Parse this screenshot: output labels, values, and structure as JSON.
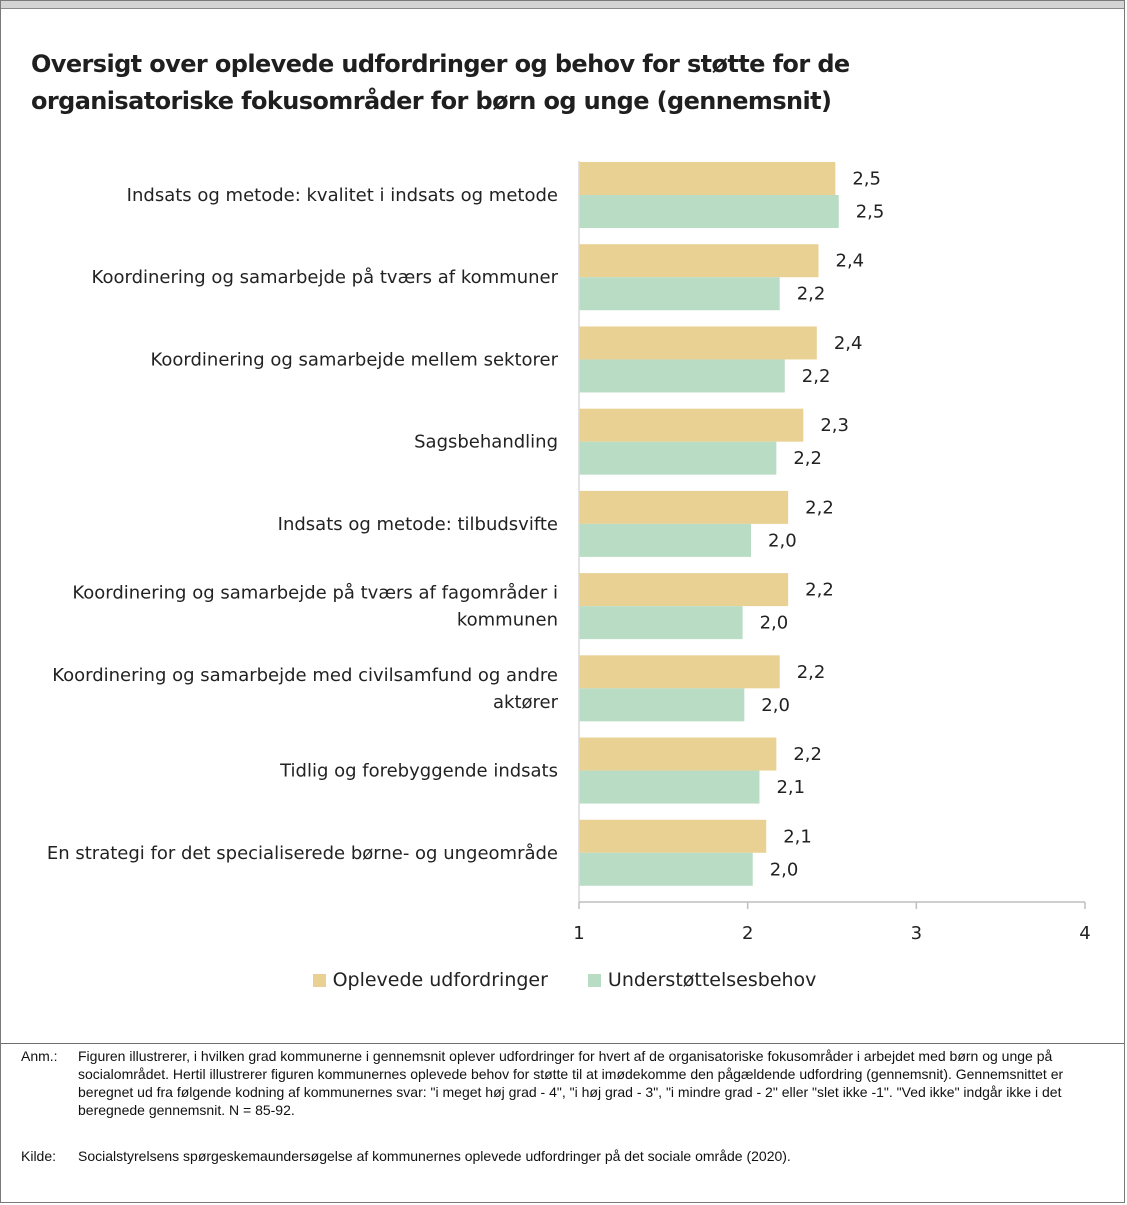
{
  "title": "Oversigt over oplevede udfordringer og behov for støtte for de organisatoriske fokusområder for børn og unge (gennemsnit)",
  "chart_data": {
    "type": "bar",
    "orientation": "horizontal",
    "title": "Oversigt over oplevede udfordringer og behov for støtte for de organisatoriske fokusområder for børn og unge (gennemsnit)",
    "categories": [
      "Indsats og metode: kvalitet i indsats og metode",
      "Koordinering og samarbejde på tværs af kommuner",
      "Koordinering og samarbejde mellem sektorer",
      "Sagsbehandling",
      "Indsats og metode: tilbudsvifte",
      "Koordinering og samarbejde på tværs af fagområder i kommunen",
      "Koordinering og samarbejde med civilsamfund og andre aktører",
      "Tidlig og forebyggende indsats",
      "En strategi for det specialiserede børne- og ungeområde"
    ],
    "category_lines": [
      [
        "Indsats og metode: kvalitet i indsats og metode"
      ],
      [
        "Koordinering og samarbejde på tværs af kommuner"
      ],
      [
        "Koordinering og samarbejde mellem sektorer"
      ],
      [
        "Sagsbehandling"
      ],
      [
        "Indsats og metode: tilbudsvifte"
      ],
      [
        "Koordinering og samarbejde på tværs af fagområder i",
        "kommunen"
      ],
      [
        "Koordinering og samarbejde med civilsamfund og andre",
        "aktører"
      ],
      [
        "Tidlig og forebyggende indsats"
      ],
      [
        "En strategi for det specialiserede børne- og ungeområde"
      ]
    ],
    "series": [
      {
        "name": "Oplevede udfordringer",
        "color": "#e8d193",
        "values": [
          2.52,
          2.42,
          2.41,
          2.33,
          2.24,
          2.24,
          2.19,
          2.17,
          2.11
        ],
        "labels": [
          "2,5",
          "2,4",
          "2,4",
          "2,3",
          "2,2",
          "2,2",
          "2,2",
          "2,2",
          "2,1"
        ]
      },
      {
        "name": "Understøttelsesbehov",
        "color": "#b9dcc4",
        "values": [
          2.54,
          2.19,
          2.22,
          2.17,
          2.02,
          1.97,
          1.98,
          2.07,
          2.03
        ],
        "labels": [
          "2,5",
          "2,2",
          "2,2",
          "2,2",
          "2,0",
          "2,0",
          "2,0",
          "2,1",
          "2,0"
        ]
      }
    ],
    "xlim": [
      1,
      4
    ],
    "xticks": [
      "1",
      "2",
      "3",
      "4"
    ],
    "xlabel": "",
    "ylabel": "",
    "grid": false,
    "legend_position": "bottom-center"
  },
  "legend": {
    "item1": "Oplevede udfordringer",
    "item2": "Understøttelsesbehov",
    "color1": "#e8d193",
    "color2": "#b9dcc4"
  },
  "notes": {
    "anm_label": "Anm.:",
    "anm_text": "Figuren illustrerer, i hvilken grad kommunerne i gennemsnit oplever udfordringer for hvert af de organisatoriske fokusområder i arbejdet med børn og unge på socialområdet. Hertil illustrerer figuren kommunernes oplevede behov for støtte til at imødekomme den pågældende udfordring (gennemsnit). Gennemsnittet er beregnet ud fra følgende kodning af kommunernes svar: \"i meget høj grad - 4\", \"i høj grad - 3\", \"i mindre grad - 2\" eller \"slet ikke -1\". \"Ved ikke\" indgår ikke i det beregnede gennemsnit. N = 85-92.",
    "kilde_label": "Kilde:",
    "kilde_text": "Socialstyrelsens spørgeskemaundersøgelse af kommunernes oplevede udfordringer på det sociale område (2020)."
  }
}
